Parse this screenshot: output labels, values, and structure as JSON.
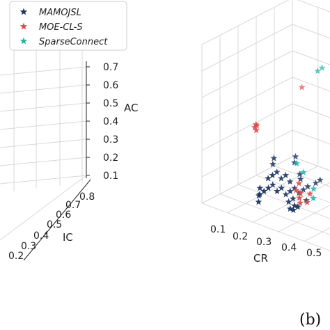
{
  "chart_data": {
    "type": "scatter",
    "projection": "3d",
    "panel_label": "(b)",
    "legend": {
      "placement": "top-left",
      "entries": [
        {
          "name": "MAMOJSL",
          "color": "#1c3461"
        },
        {
          "name": "MOE-CL-S",
          "color": "#e04848"
        },
        {
          "name": "SparseConnect",
          "color": "#1fb5a6"
        }
      ]
    },
    "left_panel": {
      "z_axis": {
        "label": "AC",
        "ticks": [
          "0.1",
          "0.2",
          "0.3",
          "0.4",
          "0.5",
          "0.6",
          "0.7"
        ]
      },
      "y_axis": {
        "label": "IC",
        "ticks": [
          "0.2",
          "0.3",
          "0.4",
          "0.5",
          "0.6",
          "0.7",
          "0.8"
        ]
      }
    },
    "right_panel": {
      "x_axis": {
        "label": "CR",
        "ticks": [
          "0.1",
          "0.2",
          "0.3",
          "0.4",
          "0.5"
        ]
      },
      "series": [
        {
          "name": "MAMOJSL",
          "color": "#1c3461",
          "points": [
            [
              0.38,
              0.1,
              0.14
            ],
            [
              0.4,
              0.12,
              0.16
            ],
            [
              0.42,
              0.14,
              0.18
            ],
            [
              0.44,
              0.16,
              0.2
            ],
            [
              0.46,
              0.18,
              0.16
            ],
            [
              0.48,
              0.2,
              0.18
            ],
            [
              0.5,
              0.22,
              0.14
            ],
            [
              0.52,
              0.24,
              0.16
            ],
            [
              0.54,
              0.26,
              0.18
            ],
            [
              0.56,
              0.28,
              0.15
            ],
            [
              0.58,
              0.3,
              0.17
            ],
            [
              0.6,
              0.32,
              0.19
            ],
            [
              0.39,
              0.18,
              0.22
            ],
            [
              0.41,
              0.2,
              0.24
            ],
            [
              0.43,
              0.22,
              0.26
            ],
            [
              0.45,
              0.24,
              0.22
            ],
            [
              0.47,
              0.26,
              0.24
            ],
            [
              0.49,
              0.28,
              0.2
            ],
            [
              0.37,
              0.26,
              0.28
            ],
            [
              0.35,
              0.3,
              0.3
            ],
            [
              0.55,
              0.18,
              0.12
            ],
            [
              0.57,
              0.2,
              0.14
            ],
            [
              0.59,
              0.14,
              0.1
            ],
            [
              0.61,
              0.16,
              0.12
            ],
            [
              0.63,
              0.12,
              0.11
            ],
            [
              0.65,
              0.14,
              0.13
            ],
            [
              0.53,
              0.34,
              0.21
            ],
            [
              0.51,
              0.36,
              0.23
            ],
            [
              0.44,
              0.4,
              0.27
            ],
            [
              0.42,
              0.44,
              0.29
            ],
            [
              0.62,
              0.38,
              0.2
            ],
            [
              0.64,
              0.4,
              0.22
            ],
            [
              0.36,
              0.12,
              0.12
            ],
            [
              0.34,
              0.16,
              0.15
            ],
            [
              0.4,
              0.06,
              0.11
            ],
            [
              0.66,
              0.22,
              0.15
            ]
          ]
        },
        {
          "name": "MOE-CL-S",
          "color": "#e04848",
          "points": [
            [
              0.2,
              0.3,
              0.45
            ],
            [
              0.21,
              0.31,
              0.46
            ],
            [
              0.22,
              0.29,
              0.44
            ],
            [
              0.21,
              0.3,
              0.47
            ],
            [
              0.58,
              0.22,
              0.19
            ],
            [
              0.6,
              0.24,
              0.17
            ],
            [
              0.62,
              0.2,
              0.16
            ],
            [
              0.64,
              0.18,
              0.14
            ],
            [
              0.66,
              0.26,
              0.18
            ],
            [
              0.68,
              0.2,
              0.15
            ],
            [
              0.56,
              0.28,
              0.21
            ],
            [
              0.3,
              0.68,
              0.62
            ]
          ]
        },
        {
          "name": "SparseConnect",
          "color": "#1fb5a6",
          "points": [
            [
              0.48,
              0.6,
              0.8
            ],
            [
              0.5,
              0.62,
              0.82
            ],
            [
              0.58,
              0.3,
              0.28
            ],
            [
              0.5,
              0.34,
              0.3
            ],
            [
              0.66,
              0.3,
              0.2
            ],
            [
              0.7,
              0.24,
              0.17
            ]
          ]
        }
      ]
    }
  }
}
